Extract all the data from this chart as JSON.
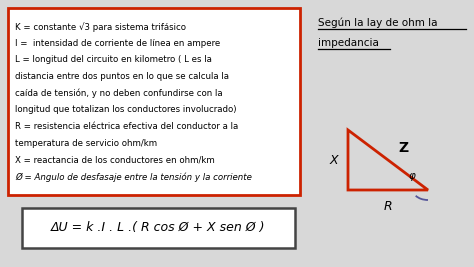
{
  "bg_color": "#d8d8d8",
  "box_text_lines": [
    "K = constante √3 para sistema trifásico",
    "I =  intensidad de corriente de línea en ampere",
    "L = longitud del circuito en kilometro ( L es la",
    "distancia entre dos puntos en lo que se calcula la",
    "caída de tensión, y no deben confundirse con la",
    "longitud que totalizan los conductores involucrado)",
    "R = resistencia eléctrica efectiva del conductor a la",
    "temperatura de servicio ohm/km",
    "X = reactancia de los conductores en ohm/km",
    "Ø = Angulo de desfasaje entre la tensión y la corriente"
  ],
  "right_title_line1": "Según la lay de ohm la",
  "right_title_line2": "impedancia",
  "formula": "ΔU = k .I . L .( R cos Ø + X sen Ø )",
  "box_border_color": "#cc2200",
  "formula_border_color": "#444444",
  "triangle_color": "#cc2200"
}
